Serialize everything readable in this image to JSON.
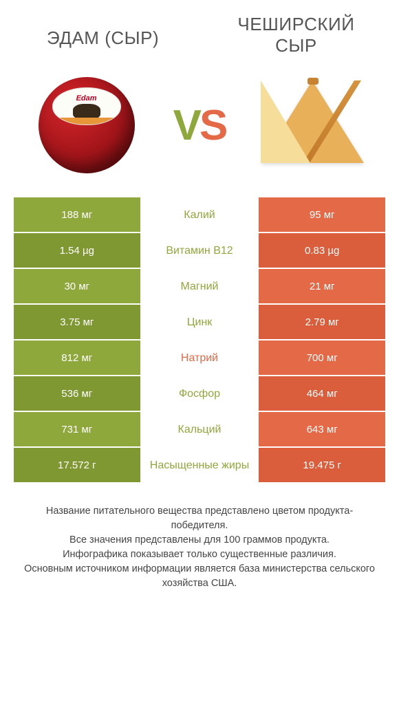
{
  "titles": {
    "left": "ЭДАМ (СЫР)",
    "right_line1": "ЧЕШИРСКИЙ",
    "right_line2": "СЫР"
  },
  "vs": {
    "v": "V",
    "s": "S"
  },
  "colors": {
    "left": "#8fa83c",
    "left_dark": "#7f9832",
    "right": "#e36947",
    "right_dark": "#da5d3c",
    "mid_bg": "#ffffff",
    "mid_border": "#f3f3f3"
  },
  "rows": [
    {
      "left": "188 мг",
      "label": "Калий",
      "right": "95 мг",
      "winner": "left"
    },
    {
      "left": "1.54 µg",
      "label": "Витамин B12",
      "right": "0.83 µg",
      "winner": "left"
    },
    {
      "left": "30 мг",
      "label": "Магний",
      "right": "21 мг",
      "winner": "left"
    },
    {
      "left": "3.75 мг",
      "label": "Цинк",
      "right": "2.79 мг",
      "winner": "left"
    },
    {
      "left": "812 мг",
      "label": "Натрий",
      "right": "700 мг",
      "winner": "right"
    },
    {
      "left": "536 мг",
      "label": "Фосфор",
      "right": "464 мг",
      "winner": "left"
    },
    {
      "left": "731 мг",
      "label": "Кальций",
      "right": "643 мг",
      "winner": "left"
    },
    {
      "left": "17.572 г",
      "label": "Насыщенные жиры",
      "right": "19.475 г",
      "winner": "left"
    }
  ],
  "footer": {
    "l1": "Название питательного вещества представлено цветом продукта-победителя.",
    "l2": "Все значения представлены для 100 граммов продукта.",
    "l3": "Инфографика показывает только существенные различия.",
    "l4": "Основным источником информации является база министерства сельского хозяйства США."
  }
}
